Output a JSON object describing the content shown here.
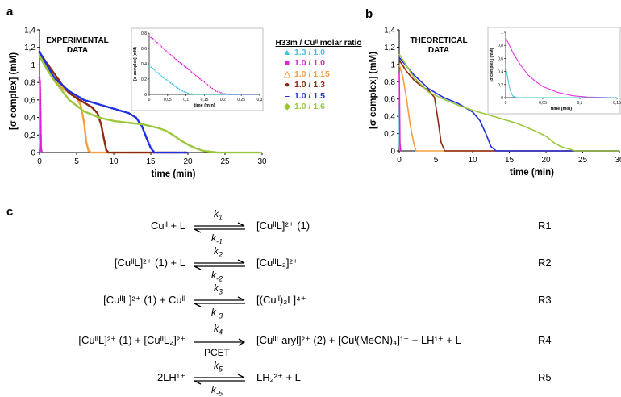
{
  "panels": [
    {
      "letter": "a"
    },
    {
      "letter": "b"
    },
    {
      "letter": "c"
    }
  ],
  "legend": {
    "title": "H33m / Cuᴵᴵ molar ratio",
    "items": [
      {
        "label": "1.3 / 1.0",
        "color": "#3dc6dc",
        "marker": "▲"
      },
      {
        "label": "1.0 / 1.0",
        "color": "#e020d8",
        "marker": "■"
      },
      {
        "label": "1.0 / 1.15",
        "color": "#f2a040",
        "marker": "△"
      },
      {
        "label": "1.0 / 1.3",
        "color": "#8b2a10",
        "marker": "●"
      },
      {
        "label": "1.0 / 1.5",
        "color": "#2030e0",
        "marker": "–"
      },
      {
        "label": "1.0 / 1.6",
        "color": "#9ac83a",
        "marker": "◆"
      }
    ]
  },
  "chart_data": [
    {
      "type": "line",
      "panel": "a",
      "annotation": "EXPERIMENTAL DATA",
      "xlabel": "time (min)",
      "ylabel": "[σ complex] (mM)",
      "xlim": [
        0,
        30
      ],
      "ylim": [
        0,
        1.4
      ],
      "xticks": [
        "0",
        "5",
        "10",
        "15",
        "20",
        "25",
        "30"
      ],
      "yticks": [
        "0",
        "0,2",
        "0,4",
        "0,6",
        "0,8",
        "1",
        "1,2",
        "1,4"
      ],
      "series": [
        {
          "name": "1.3 / 1.0",
          "color": "#3dc6dc",
          "x": [
            0,
            0.03,
            0.06,
            0.1,
            0.2
          ],
          "y": [
            0.15,
            0.6,
            0.3,
            0.05,
            0.0
          ]
        },
        {
          "name": "1.0 / 1.0",
          "color": "#e020d8",
          "x": [
            0,
            0.05,
            0.1,
            0.15,
            0.2,
            0.3
          ],
          "y": [
            0.85,
            0.8,
            0.6,
            0.3,
            0.05,
            0.0
          ]
        },
        {
          "name": "1.0 / 1.15",
          "color": "#f2a040",
          "x": [
            0,
            1,
            2,
            3,
            4,
            5,
            5.5,
            6,
            6.3,
            6.6,
            7,
            10,
            20
          ],
          "y": [
            1.12,
            0.98,
            0.85,
            0.74,
            0.68,
            0.62,
            0.55,
            0.35,
            0.12,
            0.02,
            0.0,
            0.0,
            0.0
          ]
        },
        {
          "name": "1.0 / 1.3",
          "color": "#8b2a10",
          "x": [
            0,
            1,
            2,
            3,
            4,
            5,
            6,
            7,
            7.8,
            8.3,
            8.7,
            9.0,
            9.3,
            12,
            20
          ],
          "y": [
            1.14,
            1.02,
            0.9,
            0.78,
            0.68,
            0.62,
            0.57,
            0.52,
            0.45,
            0.32,
            0.15,
            0.03,
            0.0,
            0.0,
            0.0
          ]
        },
        {
          "name": "1.0 / 1.5",
          "color": "#2030e0",
          "x": [
            0,
            1,
            2,
            4,
            6,
            8,
            10,
            12,
            13,
            13.8,
            14.5,
            15,
            15.5,
            17,
            20
          ],
          "y": [
            1.15,
            1.0,
            0.85,
            0.7,
            0.6,
            0.55,
            0.5,
            0.45,
            0.4,
            0.3,
            0.15,
            0.05,
            0.0,
            0.0,
            0.0
          ]
        },
        {
          "name": "1.0 / 1.6",
          "color": "#9ac83a",
          "x": [
            0,
            1,
            2,
            4,
            6,
            8,
            10,
            12,
            14,
            15,
            16,
            17,
            18,
            19,
            20,
            21,
            22,
            24,
            30
          ],
          "y": [
            1.1,
            0.95,
            0.82,
            0.6,
            0.47,
            0.4,
            0.36,
            0.34,
            0.32,
            0.3,
            0.28,
            0.25,
            0.2,
            0.14,
            0.09,
            0.05,
            0.02,
            0.0,
            0.0
          ]
        }
      ],
      "inset": {
        "ylabel": "[σ complex] (mM)",
        "xlabel": "time (min)",
        "xlim": [
          0,
          0.3
        ],
        "ylim": [
          0,
          0.9
        ],
        "xticks": [
          "0",
          "0,05",
          "0,1",
          "0,15",
          "0,2",
          "0,25",
          "0,3"
        ],
        "yticks": [
          "0",
          "0,2",
          "0,4",
          "0,6",
          "0,8"
        ],
        "series": [
          {
            "name": "1.0 / 1.0",
            "color": "#e020d8",
            "x": [
              0,
              0.01,
              0.03,
              0.05,
              0.08,
              0.1,
              0.13,
              0.15,
              0.18,
              0.21,
              0.24,
              0.3
            ],
            "y": [
              0.85,
              0.82,
              0.72,
              0.62,
              0.48,
              0.4,
              0.26,
              0.18,
              0.05,
              0.0,
              0.0,
              0.0
            ]
          },
          {
            "name": "1.3 / 1.0",
            "color": "#3dc6dc",
            "x": [
              0,
              0.01,
              0.03,
              0.05,
              0.07,
              0.09,
              0.11,
              0.13,
              0.3
            ],
            "y": [
              0.42,
              0.38,
              0.28,
              0.2,
              0.12,
              0.05,
              0.01,
              0.0,
              0.0
            ]
          }
        ]
      }
    },
    {
      "type": "line",
      "panel": "b",
      "annotation": "THEORETICAL DATA",
      "xlabel": "time (min)",
      "ylabel": "[σ complex] (mM)",
      "xlim": [
        0,
        30
      ],
      "ylim": [
        0,
        1.4
      ],
      "xticks": [
        "0",
        "5",
        "10",
        "15",
        "20",
        "25",
        "30"
      ],
      "yticks": [
        "0",
        "0,2",
        "0,4",
        "0,6",
        "0,8",
        "1",
        "1,2",
        "1,4"
      ],
      "series": [
        {
          "name": "1.3 / 1.0",
          "color": "#3dc6dc",
          "x": [
            0,
            0.02,
            0.05,
            0.1
          ],
          "y": [
            0.5,
            0.3,
            0.05,
            0.0
          ]
        },
        {
          "name": "1.0 / 1.0",
          "color": "#e020d8",
          "x": [
            0,
            0.05,
            0.1,
            0.2
          ],
          "y": [
            0.9,
            0.5,
            0.1,
            0.0
          ]
        },
        {
          "name": "1.0 / 1.15",
          "color": "#f2a040",
          "x": [
            0,
            0.5,
            1,
            1.5,
            2,
            2.3,
            3,
            30
          ],
          "y": [
            1.0,
            0.85,
            0.6,
            0.3,
            0.08,
            0.0,
            0.0,
            0.0
          ]
        },
        {
          "name": "1.0 / 1.3",
          "color": "#8b2a10",
          "x": [
            0,
            1,
            2,
            3,
            4,
            4.8,
            5.3,
            5.7,
            6.2,
            30
          ],
          "y": [
            1.05,
            0.92,
            0.82,
            0.75,
            0.7,
            0.62,
            0.35,
            0.1,
            0.0,
            0.0
          ]
        },
        {
          "name": "1.0 / 1.5",
          "color": "#2030e0",
          "x": [
            0,
            2,
            4,
            6,
            8,
            10,
            11,
            11.8,
            12.5,
            13.2,
            30
          ],
          "y": [
            1.08,
            0.88,
            0.72,
            0.62,
            0.55,
            0.45,
            0.35,
            0.2,
            0.05,
            0.0,
            0.0
          ]
        },
        {
          "name": "1.0 / 1.6",
          "color": "#9ac83a",
          "x": [
            0,
            2,
            4,
            6,
            8,
            10,
            12,
            14,
            16,
            18,
            20,
            21,
            22,
            24,
            30
          ],
          "y": [
            1.12,
            0.85,
            0.68,
            0.6,
            0.53,
            0.47,
            0.42,
            0.37,
            0.32,
            0.25,
            0.17,
            0.1,
            0.05,
            0.0,
            0.0
          ]
        }
      ],
      "inset": {
        "ylabel": "[σ complex] (mM)",
        "xlabel": "time (min)",
        "xlim": [
          0,
          0.15
        ],
        "ylim": [
          0,
          1
        ],
        "xticks": [
          "0",
          "0,05",
          "0,1",
          "0,15"
        ],
        "yticks": [
          "0",
          "0,2",
          "0,4",
          "0,6",
          "0,8",
          "1"
        ],
        "series": [
          {
            "name": "1.0 / 1.0",
            "color": "#e020d8",
            "x": [
              0,
              0.005,
              0.01,
              0.02,
              0.03,
              0.04,
              0.05,
              0.07,
              0.09,
              0.11,
              0.15
            ],
            "y": [
              0.92,
              0.8,
              0.68,
              0.5,
              0.35,
              0.25,
              0.17,
              0.08,
              0.03,
              0.01,
              0.0
            ]
          },
          {
            "name": "1.3 / 1.0",
            "color": "#3dc6dc",
            "x": [
              0,
              0.002,
              0.004,
              0.006,
              0.008,
              0.01,
              0.015,
              0.15
            ],
            "y": [
              0.48,
              0.35,
              0.22,
              0.12,
              0.06,
              0.02,
              0.0,
              0.0
            ]
          }
        ]
      }
    }
  ],
  "reactions": [
    {
      "id": "R1",
      "kf": "k1",
      "kb": "k-1",
      "lhs": "Cuᴵᴵ  +  L",
      "rhs": "[CuᴵᴵL]²⁺ (1)",
      "type": "eq"
    },
    {
      "id": "R2",
      "kf": "k2",
      "kb": "k-2",
      "lhs": "[CuᴵᴵL]²⁺ (1)  +  L",
      "rhs": "[CuᴵᴵL₂]²⁺",
      "type": "eq"
    },
    {
      "id": "R3",
      "kf": "k3",
      "kb": "k-3",
      "lhs": "[CuᴵᴵL]²⁺ (1)  +  Cuᴵᴵ",
      "rhs": "[(Cuᴵᴵ)₂L]⁴⁺",
      "type": "eq"
    },
    {
      "id": "R4",
      "kf": "k4",
      "kb": "PCET",
      "lhs": "[CuᴵᴵL]²⁺ (1)  +  [CuᴵᴵL₂]²⁺",
      "rhs": "[Cuᴵᴵᴵ-aryl]²⁺ (2)  +  [Cuᴵ(MeCN)₄]¹⁺  +  LH¹⁺  +  L",
      "type": "fwd"
    },
    {
      "id": "R5",
      "kf": "k5",
      "kb": "k-5",
      "lhs": "2LH¹⁺",
      "rhs": "LH₂²⁺  +  L",
      "type": "eq"
    }
  ]
}
